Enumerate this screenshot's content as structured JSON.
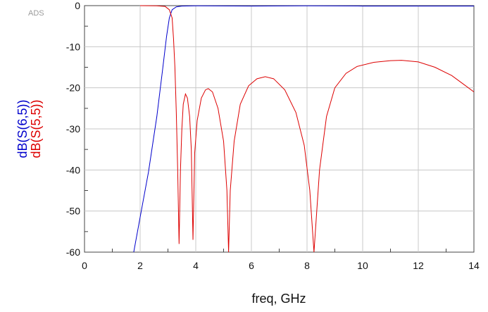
{
  "chart_data": {
    "type": "line",
    "watermark": "ADS",
    "xlabel": "freq, GHz",
    "ylabels": [
      "dB(S(6,5))",
      "dB(S(5,5))"
    ],
    "xlim": [
      0,
      14
    ],
    "ylim": [
      -60,
      0
    ],
    "x_ticks": [
      0,
      2,
      4,
      6,
      8,
      10,
      12,
      14
    ],
    "x_tick_labels": [
      "0",
      "2",
      "4",
      "6",
      "8",
      "10",
      "12",
      "14"
    ],
    "y_ticks": [
      0,
      -10,
      -20,
      -30,
      -40,
      -50,
      -60
    ],
    "y_tick_labels": [
      "0",
      "-10",
      "-20",
      "-30",
      "-40",
      "-50",
      "-60"
    ],
    "grid": true,
    "series": [
      {
        "name": "dB(S(6,5))",
        "color": "#0000cc",
        "points": [
          [
            1.77,
            -60
          ],
          [
            2.0,
            -51.5
          ],
          [
            2.3,
            -40.5
          ],
          [
            2.6,
            -27
          ],
          [
            2.8,
            -16
          ],
          [
            2.95,
            -7.5
          ],
          [
            3.05,
            -3
          ],
          [
            3.15,
            -1
          ],
          [
            3.3,
            -0.3
          ],
          [
            3.5,
            -0.1
          ],
          [
            4.0,
            -0.05
          ],
          [
            6.0,
            -0.1
          ],
          [
            8.0,
            -0.05
          ],
          [
            10.0,
            -0.1
          ],
          [
            12.0,
            -0.1
          ],
          [
            14.0,
            -0.1
          ]
        ]
      },
      {
        "name": "dB(S(5,5))",
        "color": "#dd0000",
        "points": [
          [
            2.0,
            -0.01
          ],
          [
            2.6,
            -0.05
          ],
          [
            2.9,
            -0.2
          ],
          [
            3.05,
            -1
          ],
          [
            3.15,
            -3
          ],
          [
            3.2,
            -8
          ],
          [
            3.25,
            -15
          ],
          [
            3.3,
            -26
          ],
          [
            3.35,
            -40
          ],
          [
            3.4,
            -58
          ],
          [
            3.45,
            -40
          ],
          [
            3.5,
            -30
          ],
          [
            3.55,
            -24
          ],
          [
            3.63,
            -21.5
          ],
          [
            3.7,
            -22.5
          ],
          [
            3.78,
            -27
          ],
          [
            3.84,
            -35
          ],
          [
            3.9,
            -57
          ],
          [
            3.96,
            -36
          ],
          [
            4.05,
            -28
          ],
          [
            4.2,
            -22.5
          ],
          [
            4.35,
            -20.5
          ],
          [
            4.45,
            -20.2
          ],
          [
            4.6,
            -21
          ],
          [
            4.8,
            -25
          ],
          [
            5.0,
            -33
          ],
          [
            5.12,
            -45
          ],
          [
            5.18,
            -60
          ],
          [
            5.24,
            -45
          ],
          [
            5.38,
            -33
          ],
          [
            5.6,
            -24
          ],
          [
            5.9,
            -19.5
          ],
          [
            6.2,
            -17.8
          ],
          [
            6.5,
            -17.3
          ],
          [
            6.8,
            -17.8
          ],
          [
            7.2,
            -20.5
          ],
          [
            7.6,
            -26
          ],
          [
            7.9,
            -34
          ],
          [
            8.1,
            -45
          ],
          [
            8.2,
            -55
          ],
          [
            8.25,
            -60
          ],
          [
            8.3,
            -55
          ],
          [
            8.45,
            -40
          ],
          [
            8.7,
            -27
          ],
          [
            9.0,
            -20
          ],
          [
            9.4,
            -16.5
          ],
          [
            9.8,
            -14.8
          ],
          [
            10.4,
            -13.8
          ],
          [
            11.0,
            -13.4
          ],
          [
            11.4,
            -13.3
          ],
          [
            12.0,
            -13.7
          ],
          [
            12.6,
            -15
          ],
          [
            13.2,
            -17
          ],
          [
            13.6,
            -19
          ],
          [
            14.0,
            -21
          ]
        ]
      }
    ]
  }
}
